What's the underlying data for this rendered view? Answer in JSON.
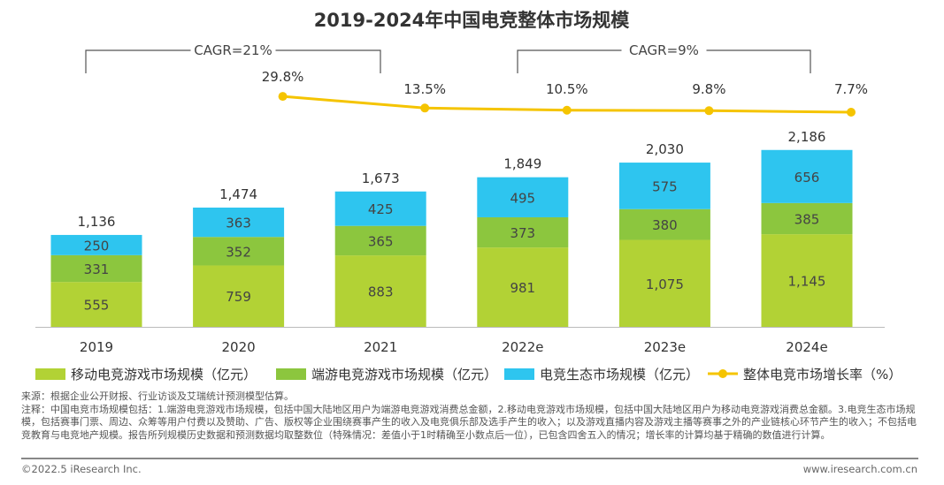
{
  "chart_data": {
    "type": "bar",
    "title": "2019-2024年中国电竞整体市场规模",
    "categories": [
      "2019",
      "2020",
      "2021",
      "2022e",
      "2023e",
      "2024e"
    ],
    "series": [
      {
        "name": "移动电竞游戏市场规模（亿元）",
        "color": "#b2d235",
        "values": [
          555,
          759,
          883,
          981,
          1075,
          1145
        ]
      },
      {
        "name": "端游电竞游戏市场规模（亿元）",
        "color": "#8cc63e",
        "values": [
          331,
          352,
          365,
          373,
          380,
          385
        ]
      },
      {
        "name": "电竞生态市场规模（亿元）",
        "color": "#2ec5ef",
        "values": [
          250,
          363,
          425,
          495,
          575,
          656
        ]
      }
    ],
    "totals": [
      1136,
      1474,
      1673,
      1849,
      2030,
      2186
    ],
    "line": {
      "name": "整体电竞市场增长率（%）",
      "color": "#f5c400",
      "values": [
        null,
        29.8,
        13.5,
        10.5,
        9.8,
        7.7
      ],
      "labels": [
        "",
        "29.8%",
        "13.5%",
        "10.5%",
        "9.8%",
        "7.7%"
      ]
    },
    "annotations": [
      {
        "text": "CAGR=21%",
        "from": "2019",
        "to": "2021"
      },
      {
        "text": "CAGR=9%",
        "from": "2022e",
        "to": "2024e"
      }
    ],
    "stacked": true,
    "legend": "bottom"
  },
  "source": "来源：根据企业公开财报、行业访谈及艾瑞统计预测模型估算。",
  "note": "注释：中国电竞市场规模包括：1.端游电竞游戏市场规模，包括中国大陆地区用户为端游电竞游戏消费总金额，2.移动电竞游戏市场规模，包括中国大陆地区用户为移动电竞游戏消费总金额。3.电竞生态市场规模，包括赛事门票、周边、众筹等用户付费以及赞助、广告、版权等企业围绕赛事产生的收入及电竞俱乐部及选手产生的收入；以及游戏直播内容及游戏主播等赛事之外的产业链核心环节产生的收入；不包括电竞教育与电竞地产规模。报告所列规模历史数据和预测数据均取整数位（特殊情况：差值小于1时精确至小数点后一位），已包含四舍五入的情况；增长率的计算均基于精确的数值进行计算。",
  "copyright": "©2022.5 iResearch Inc.",
  "website": "www.iresearch.com.cn"
}
